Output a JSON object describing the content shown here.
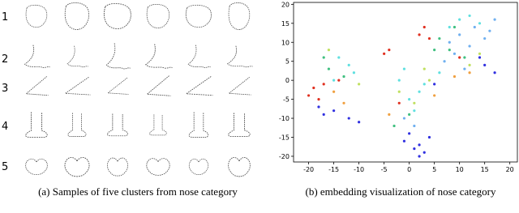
{
  "panel_a": {
    "row_labels": [
      "1",
      "2",
      "3",
      "4",
      "5"
    ],
    "caption": "(a) Samples of five clusters from nose category"
  },
  "panel_b": {
    "caption": "(b) embedding visualization of nose category"
  },
  "chart_data": {
    "type": "scatter",
    "xlim": [
      -23,
      21.5
    ],
    "ylim": [
      -21.5,
      20.5
    ],
    "xticks": [
      -20,
      -15,
      -10,
      -5,
      0,
      5,
      10,
      15,
      20
    ],
    "yticks": [
      -20,
      -15,
      -10,
      -5,
      0,
      5,
      10,
      15,
      20
    ],
    "series": [
      {
        "color": "#3030e0",
        "x": [
          -18,
          -17,
          -15,
          -12,
          -10,
          -1,
          1,
          2,
          3,
          4,
          0,
          2,
          15,
          17,
          14,
          5
        ],
        "y": [
          -7,
          -9,
          -8,
          -10,
          -11,
          -16,
          -18,
          -17,
          -19,
          -15,
          -14,
          -20,
          4,
          2,
          6,
          -1
        ]
      },
      {
        "color": "#e03020",
        "x": [
          -19,
          -18,
          -20,
          -17,
          -14,
          2,
          3,
          4,
          -5,
          -4,
          10,
          -2
        ],
        "y": [
          -2,
          -5,
          -4,
          -1,
          0,
          12,
          14,
          11,
          7,
          8,
          6,
          -6
        ]
      },
      {
        "color": "#60e0e0",
        "x": [
          -14,
          -12,
          -11,
          -15,
          -2,
          0,
          2,
          -1,
          1,
          3,
          8,
          10,
          12,
          14,
          6
        ],
        "y": [
          6,
          4,
          2,
          0,
          0,
          -5,
          -3,
          3,
          -8,
          -1,
          14,
          16,
          17,
          15,
          2
        ]
      },
      {
        "color": "#70b0f0",
        "x": [
          8,
          10,
          12,
          13,
          15,
          16,
          17,
          7,
          9,
          11,
          -1,
          1
        ],
        "y": [
          10,
          12,
          9,
          14,
          11,
          13,
          16,
          5,
          7,
          3,
          -10,
          -12
        ]
      },
      {
        "color": "#40c080",
        "x": [
          -17,
          -16,
          -13,
          5,
          6,
          8,
          9,
          11,
          -3,
          0
        ],
        "y": [
          6,
          3,
          1,
          8,
          11,
          8,
          14,
          6,
          -12,
          -9
        ]
      },
      {
        "color": "#c0e060",
        "x": [
          -16,
          -10,
          -2,
          1,
          4,
          3,
          12,
          14
        ],
        "y": [
          8,
          -1,
          -3,
          -6,
          0,
          3,
          4,
          7
        ]
      },
      {
        "color": "#f0a040",
        "x": [
          -15,
          -13,
          9,
          12,
          -4,
          5
        ],
        "y": [
          -3,
          -6,
          1,
          2,
          -9,
          -4
        ]
      }
    ]
  }
}
